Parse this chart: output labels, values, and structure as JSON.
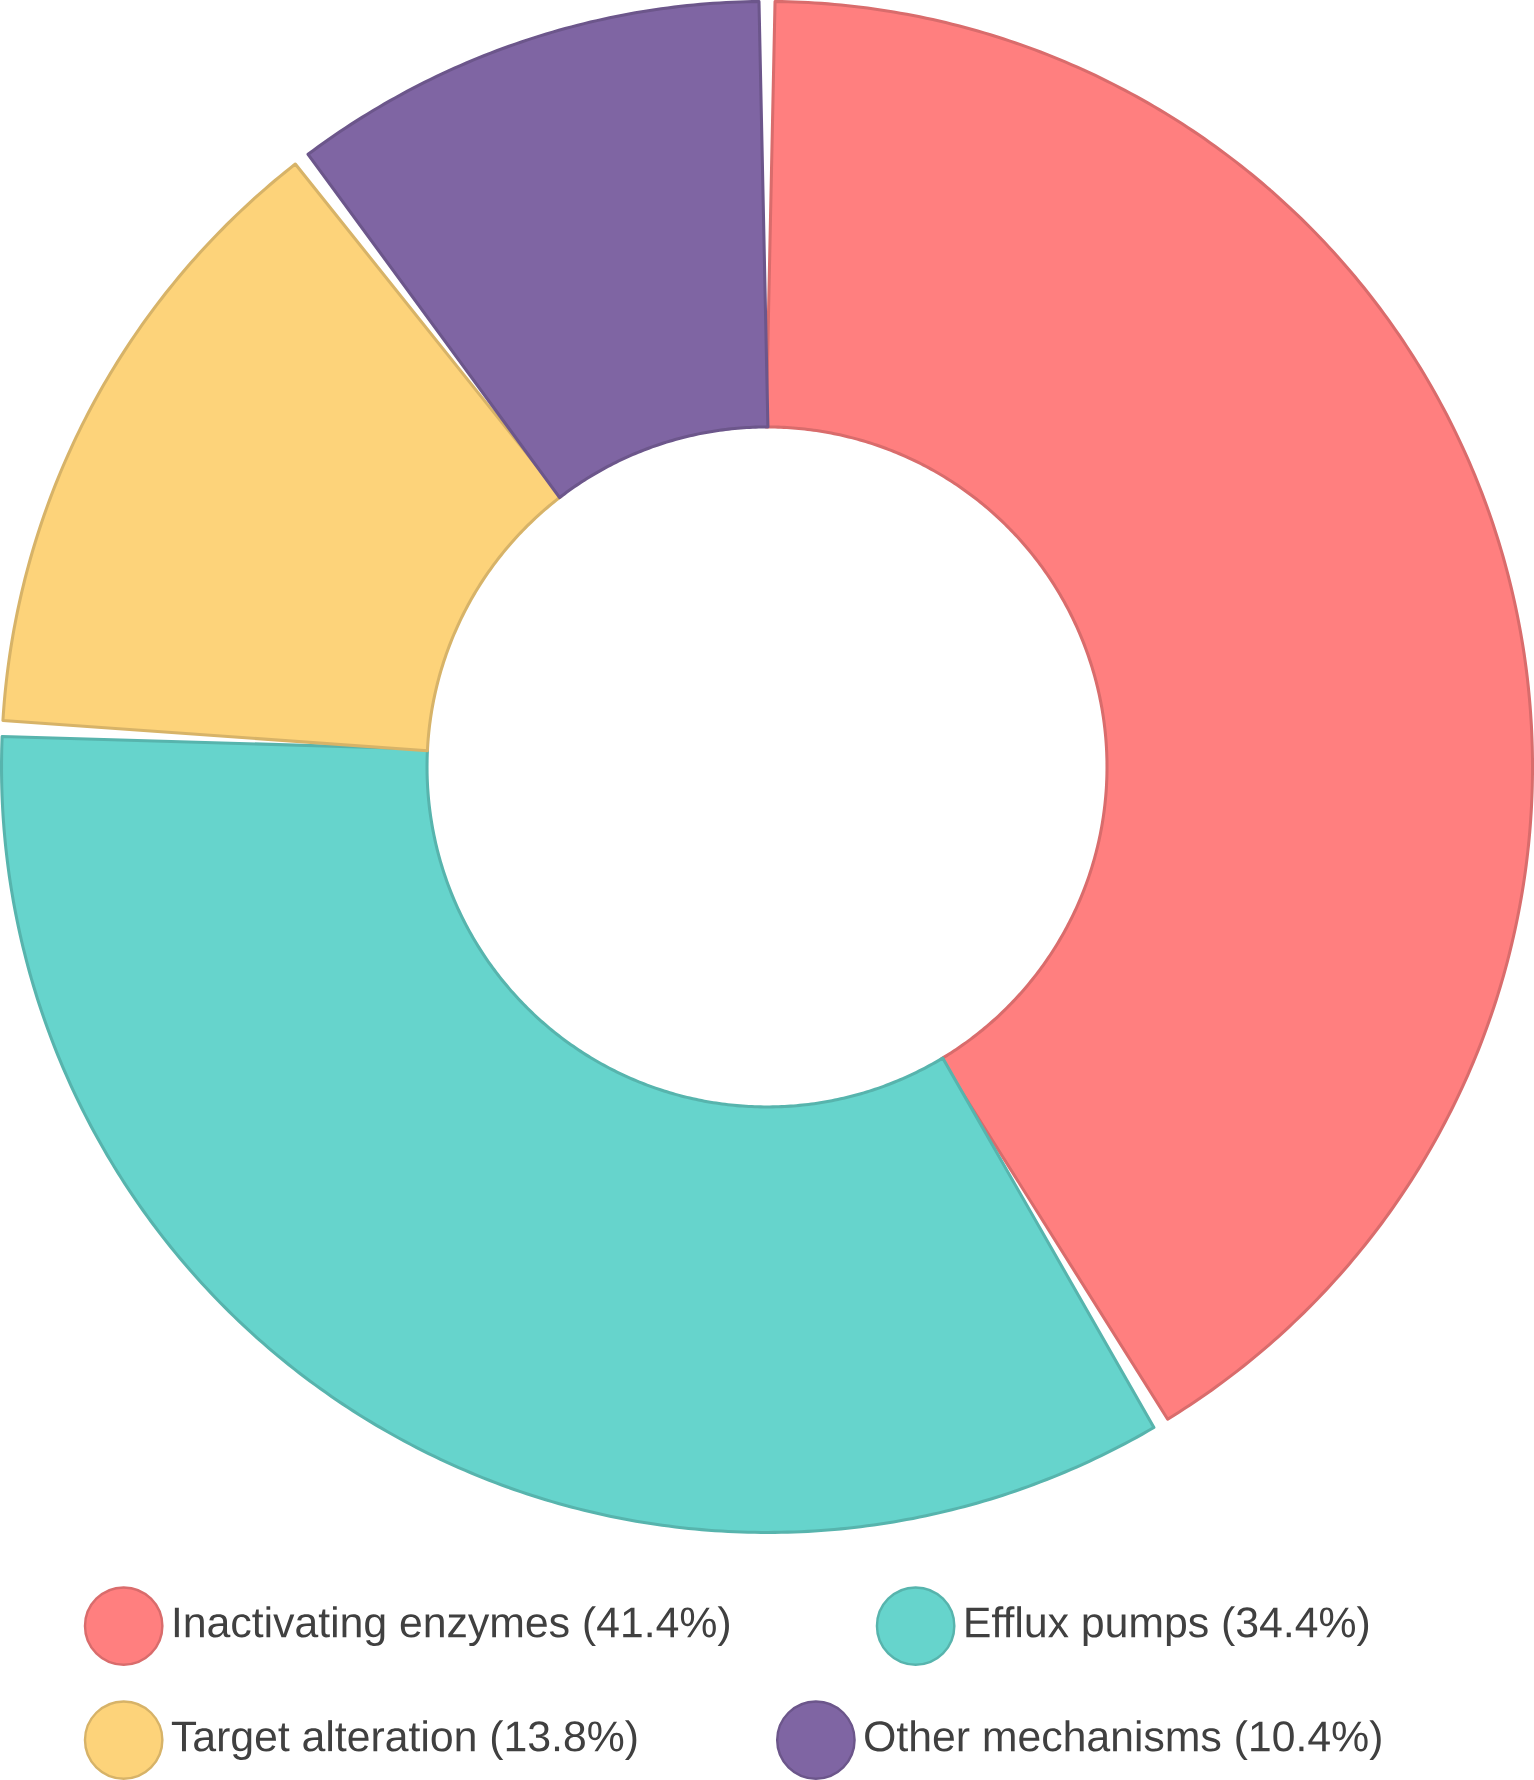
{
  "chart_data": {
    "type": "donut",
    "categories": [
      "Inactivating enzymes (41.4%)",
      "Efflux pumps (34.4%)",
      "Target alteration (13.8%)",
      "Other mechanisms (10.4%)"
    ],
    "values": [
      41.4,
      34.4,
      13.8,
      10.4
    ],
    "colors": [
      "#ff7f7f",
      "#66d4cc",
      "#fdd37a",
      "#7f65a3"
    ],
    "legend": "bottom"
  }
}
